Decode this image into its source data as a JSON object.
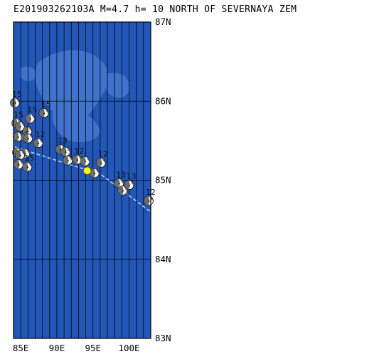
{
  "title": "E201903262103A  M=4.7  h=  10  NORTH OF SEVERNAYA ZEM",
  "colors": {
    "ocean": "#2257b8",
    "land": "#3f73cc",
    "grid": "#000000",
    "epicenter": "#ffff00",
    "fault_trace": "#b8d4ee",
    "beachball_compressional": "#6e6e6e",
    "beachball_dilatational": "#ffffff"
  },
  "map": {
    "lon_range": [
      84,
      103
    ],
    "lat_range": [
      83,
      87
    ],
    "lat_labels": [
      "87N",
      "86N",
      "85N",
      "84N",
      "83N"
    ],
    "lon_labels": [
      "85E",
      "90E",
      "95E",
      "100E"
    ]
  },
  "epicenter": {
    "lon": 94.2,
    "lat": 85.12
  },
  "events": [
    {
      "lon": 84.2,
      "lat": 85.98,
      "label": "15"
    },
    {
      "lon": 88.2,
      "lat": 85.85,
      "label": "15"
    },
    {
      "lon": 86.3,
      "lat": 85.78,
      "label": "15"
    },
    {
      "lon": 84.4,
      "lat": 85.72,
      "label": "15"
    },
    {
      "lon": 84.9,
      "lat": 85.68,
      "label": ""
    },
    {
      "lon": 85.9,
      "lat": 85.62,
      "label": ""
    },
    {
      "lon": 84.6,
      "lat": 85.55,
      "label": ""
    },
    {
      "lon": 85.7,
      "lat": 85.54,
      "label": ""
    },
    {
      "lon": 86.0,
      "lat": 85.53,
      "label": "1"
    },
    {
      "lon": 87.4,
      "lat": 85.47,
      "label": "12"
    },
    {
      "lon": 90.5,
      "lat": 85.39,
      "label": "13"
    },
    {
      "lon": 91.2,
      "lat": 85.36,
      "label": ""
    },
    {
      "lon": 84.5,
      "lat": 85.35,
      "label": ""
    },
    {
      "lon": 85.6,
      "lat": 85.34,
      "label": ""
    },
    {
      "lon": 84.9,
      "lat": 85.32,
      "label": ""
    },
    {
      "lon": 91.5,
      "lat": 85.25,
      "label": ""
    },
    {
      "lon": 92.8,
      "lat": 85.26,
      "label": "12"
    },
    {
      "lon": 93.9,
      "lat": 85.24,
      "label": ""
    },
    {
      "lon": 96.1,
      "lat": 85.22,
      "label": "12"
    },
    {
      "lon": 84.7,
      "lat": 85.2,
      "label": ""
    },
    {
      "lon": 85.9,
      "lat": 85.17,
      "label": "15"
    },
    {
      "lon": 95.2,
      "lat": 85.09,
      "label": ""
    },
    {
      "lon": 98.6,
      "lat": 84.96,
      "label": "13"
    },
    {
      "lon": 100.0,
      "lat": 84.94,
      "label": "13"
    },
    {
      "lon": 99.1,
      "lat": 84.87,
      "label": ""
    },
    {
      "lon": 102.7,
      "lat": 84.74,
      "label": "12"
    }
  ]
}
